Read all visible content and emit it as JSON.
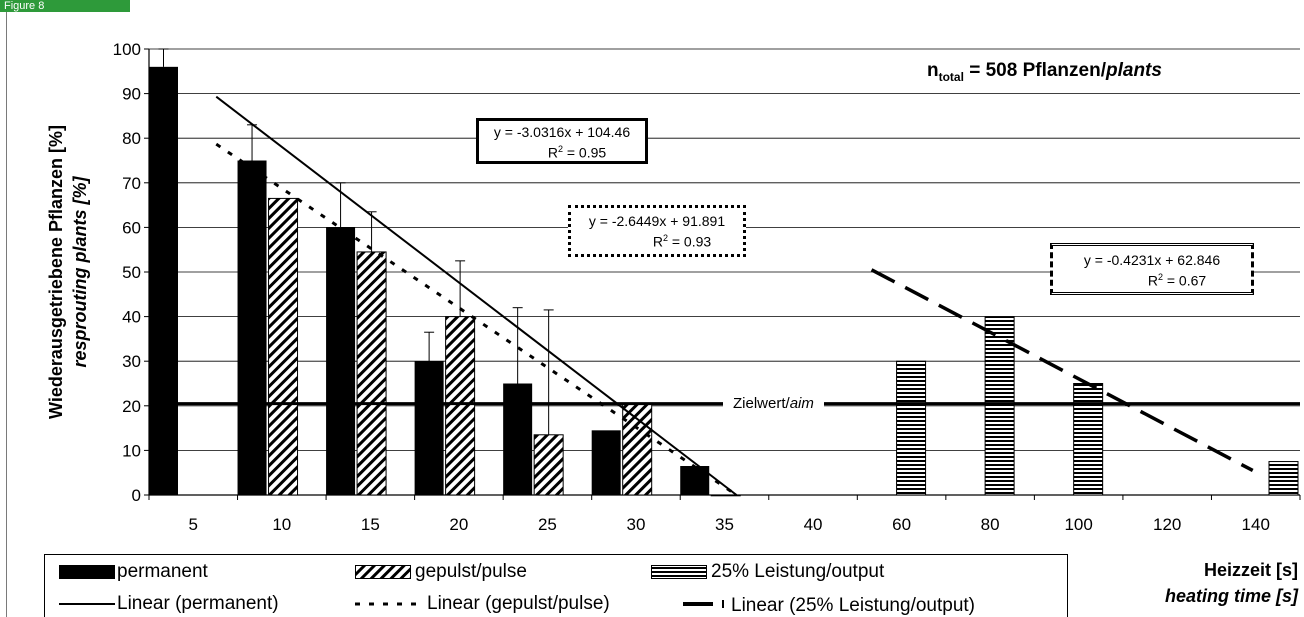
{
  "header_tag": "Figure 8",
  "annotation": {
    "n_prefix": "n",
    "n_sub": "total",
    "n_value": " = 508 Pflanzen/",
    "n_unit_italic": "plants",
    "aim_label": "Zielwert/",
    "aim_label_italic": "aim"
  },
  "equations": {
    "permanent": {
      "eq": "y = -3.0316x + 104.46",
      "r2": "= 0.95"
    },
    "pulse": {
      "eq": "y = -2.6449x + 91.891",
      "r2": "= 0.93"
    },
    "output": {
      "eq": "y = -0.4231x + 62.846",
      "r2": "= 0.67"
    },
    "r2_prefix": "R",
    "r2_exp": "2"
  },
  "legend": {
    "permanent": "permanent",
    "pulse": "gepulst/pulse",
    "output": "25% Leistung/output",
    "lin_permanent": "Linear (permanent)",
    "lin_pulse": "Linear (gepulst/pulse)",
    "lin_output": "Linear (25% Leistung/output)"
  },
  "axes_text": {
    "ytitle": "Wiederausgetriebene Pflanzen [%]",
    "ytitle_italic": "resprouting plants [%]",
    "xtitle": "Heizzeit [s]",
    "xtitle_italic": "heating time [s]"
  },
  "chart_data": {
    "type": "bar",
    "categories": [
      "5",
      "10",
      "15",
      "20",
      "25",
      "30",
      "35",
      "40",
      "60",
      "80",
      "100",
      "120",
      "140"
    ],
    "ylim": [
      0,
      100
    ],
    "yticks": [
      0,
      10,
      20,
      30,
      40,
      50,
      60,
      70,
      80,
      90,
      100
    ],
    "grid": true,
    "target_line": 20.5,
    "series": [
      {
        "name": "permanent",
        "values": [
          96,
          75,
          60,
          30,
          25,
          14.5,
          6.5,
          null,
          null,
          null,
          null,
          null,
          null
        ],
        "error": [
          4,
          8,
          10,
          6.5,
          17,
          0,
          0,
          null,
          null,
          null,
          null,
          null,
          null
        ]
      },
      {
        "name": "gepulst/pulse",
        "values": [
          null,
          66.5,
          54.5,
          40,
          13.5,
          20.5,
          0,
          null,
          null,
          null,
          null,
          null,
          null
        ],
        "error": [
          null,
          0,
          9,
          12.5,
          28,
          0,
          0,
          null,
          null,
          null,
          null,
          null,
          null
        ]
      },
      {
        "name": "25% Leistung/output",
        "values": [
          null,
          null,
          null,
          null,
          null,
          null,
          null,
          null,
          30,
          40,
          25,
          null,
          7.5
        ]
      }
    ],
    "trendlines": [
      {
        "name": "Linear (permanent)",
        "slope": -3.0316,
        "intercept": 104.46,
        "r2": 0.95
      },
      {
        "name": "Linear (gepulst/pulse)",
        "slope": -2.6449,
        "intercept": 91.891,
        "r2": 0.93
      },
      {
        "name": "Linear (25% Leistung/output)",
        "slope": -0.4231,
        "intercept": 62.846,
        "r2": 0.67
      }
    ]
  }
}
